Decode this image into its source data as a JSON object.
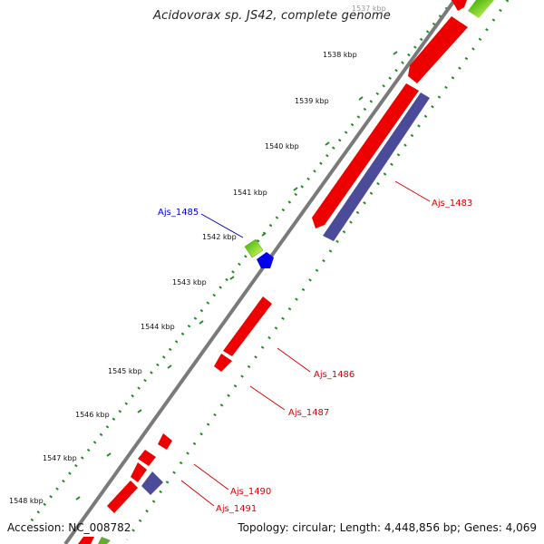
{
  "header": {
    "title": "Acidovorax sp. JS42, complete genome"
  },
  "footer": {
    "accession": "Accession: NC_008782",
    "summary": "Topology: circular; Length: 4,448,856 bp; Genes: 4,069"
  },
  "colors": {
    "backbone": "#7a7a7a",
    "gene_red": "#ee0000",
    "gene_purple": "#4b4b99",
    "gene_blue": "#0000ee",
    "gene_green": "#66cc00",
    "tick_green": "#228b22",
    "label_red": "#dd0000",
    "label_blue": "#0000cc"
  },
  "ruler": {
    "labels": [
      "1537 kbp",
      "1538 kbp",
      "1539 kbp",
      "1540 kbp",
      "1541 kbp",
      "1542 kbp",
      "1543 kbp",
      "1544 kbp",
      "1545 kbp",
      "1546 kbp",
      "1547 kbp",
      "1548 kbp"
    ]
  },
  "gene_labels": [
    {
      "name": "Ajs_1485",
      "strand": "forward",
      "color": "blue"
    },
    {
      "name": "Ajs_1483",
      "strand": "reverse",
      "color": "red"
    },
    {
      "name": "Ajs_1486",
      "strand": "reverse",
      "color": "red"
    },
    {
      "name": "Ajs_1487",
      "strand": "reverse",
      "color": "red"
    },
    {
      "name": "Ajs_1490",
      "strand": "reverse",
      "color": "red"
    },
    {
      "name": "Ajs_1491",
      "strand": "reverse",
      "color": "red"
    }
  ]
}
